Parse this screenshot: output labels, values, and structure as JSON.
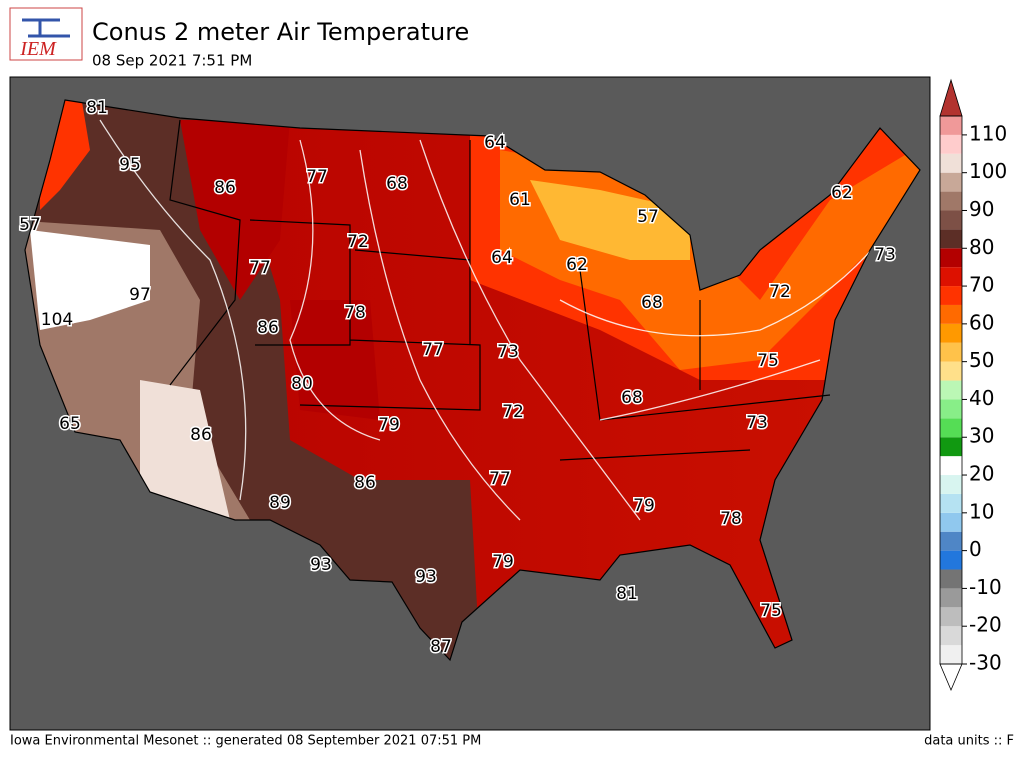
{
  "logo": {
    "text": "IEM"
  },
  "header": {
    "title": "Conus 2 meter Air Temperature",
    "subtitle": "08 Sep 2021 7:51 PM"
  },
  "map": {
    "labels": [
      81,
      95,
      86,
      77,
      68,
      64,
      61,
      57,
      62,
      57,
      72,
      77,
      64,
      62,
      73,
      97,
      104,
      86,
      78,
      68,
      72,
      77,
      73,
      75,
      80,
      68,
      72,
      79,
      73,
      65,
      86,
      77,
      86,
      79,
      89,
      78,
      93,
      93,
      79,
      81,
      75,
      87
    ]
  },
  "colorbar": {
    "range": [
      -30,
      115
    ],
    "step": 5,
    "ticks": [
      -30,
      -20,
      -10,
      0,
      10,
      20,
      30,
      40,
      50,
      60,
      70,
      80,
      90,
      100,
      110
    ],
    "colors": [
      "#f0f0f0",
      "#d9d9d9",
      "#bdbdbd",
      "#9a9a9a",
      "#747474",
      "#2277dd",
      "#4f86c6",
      "#90c8ee",
      "#b5e2f2",
      "#d8f5f0",
      "#ffffff",
      "#119911",
      "#55dd55",
      "#88ee88",
      "#bbf7b5",
      "#ffe08a",
      "#ffc24a",
      "#ff9900",
      "#ff6a00",
      "#ff3300",
      "#dd1100",
      "#b30000",
      "#5c2e26",
      "#7d5046",
      "#a07868",
      "#c8a898",
      "#f0e0d8",
      "#ffcccc",
      "#f09999"
    ],
    "over_color": "#b2332f",
    "under_color": "#ffffff"
  },
  "footer": {
    "left": "Iowa Environmental Mesonet :: generated 08 September 2021 07:51 PM",
    "right": "data units :: F"
  }
}
